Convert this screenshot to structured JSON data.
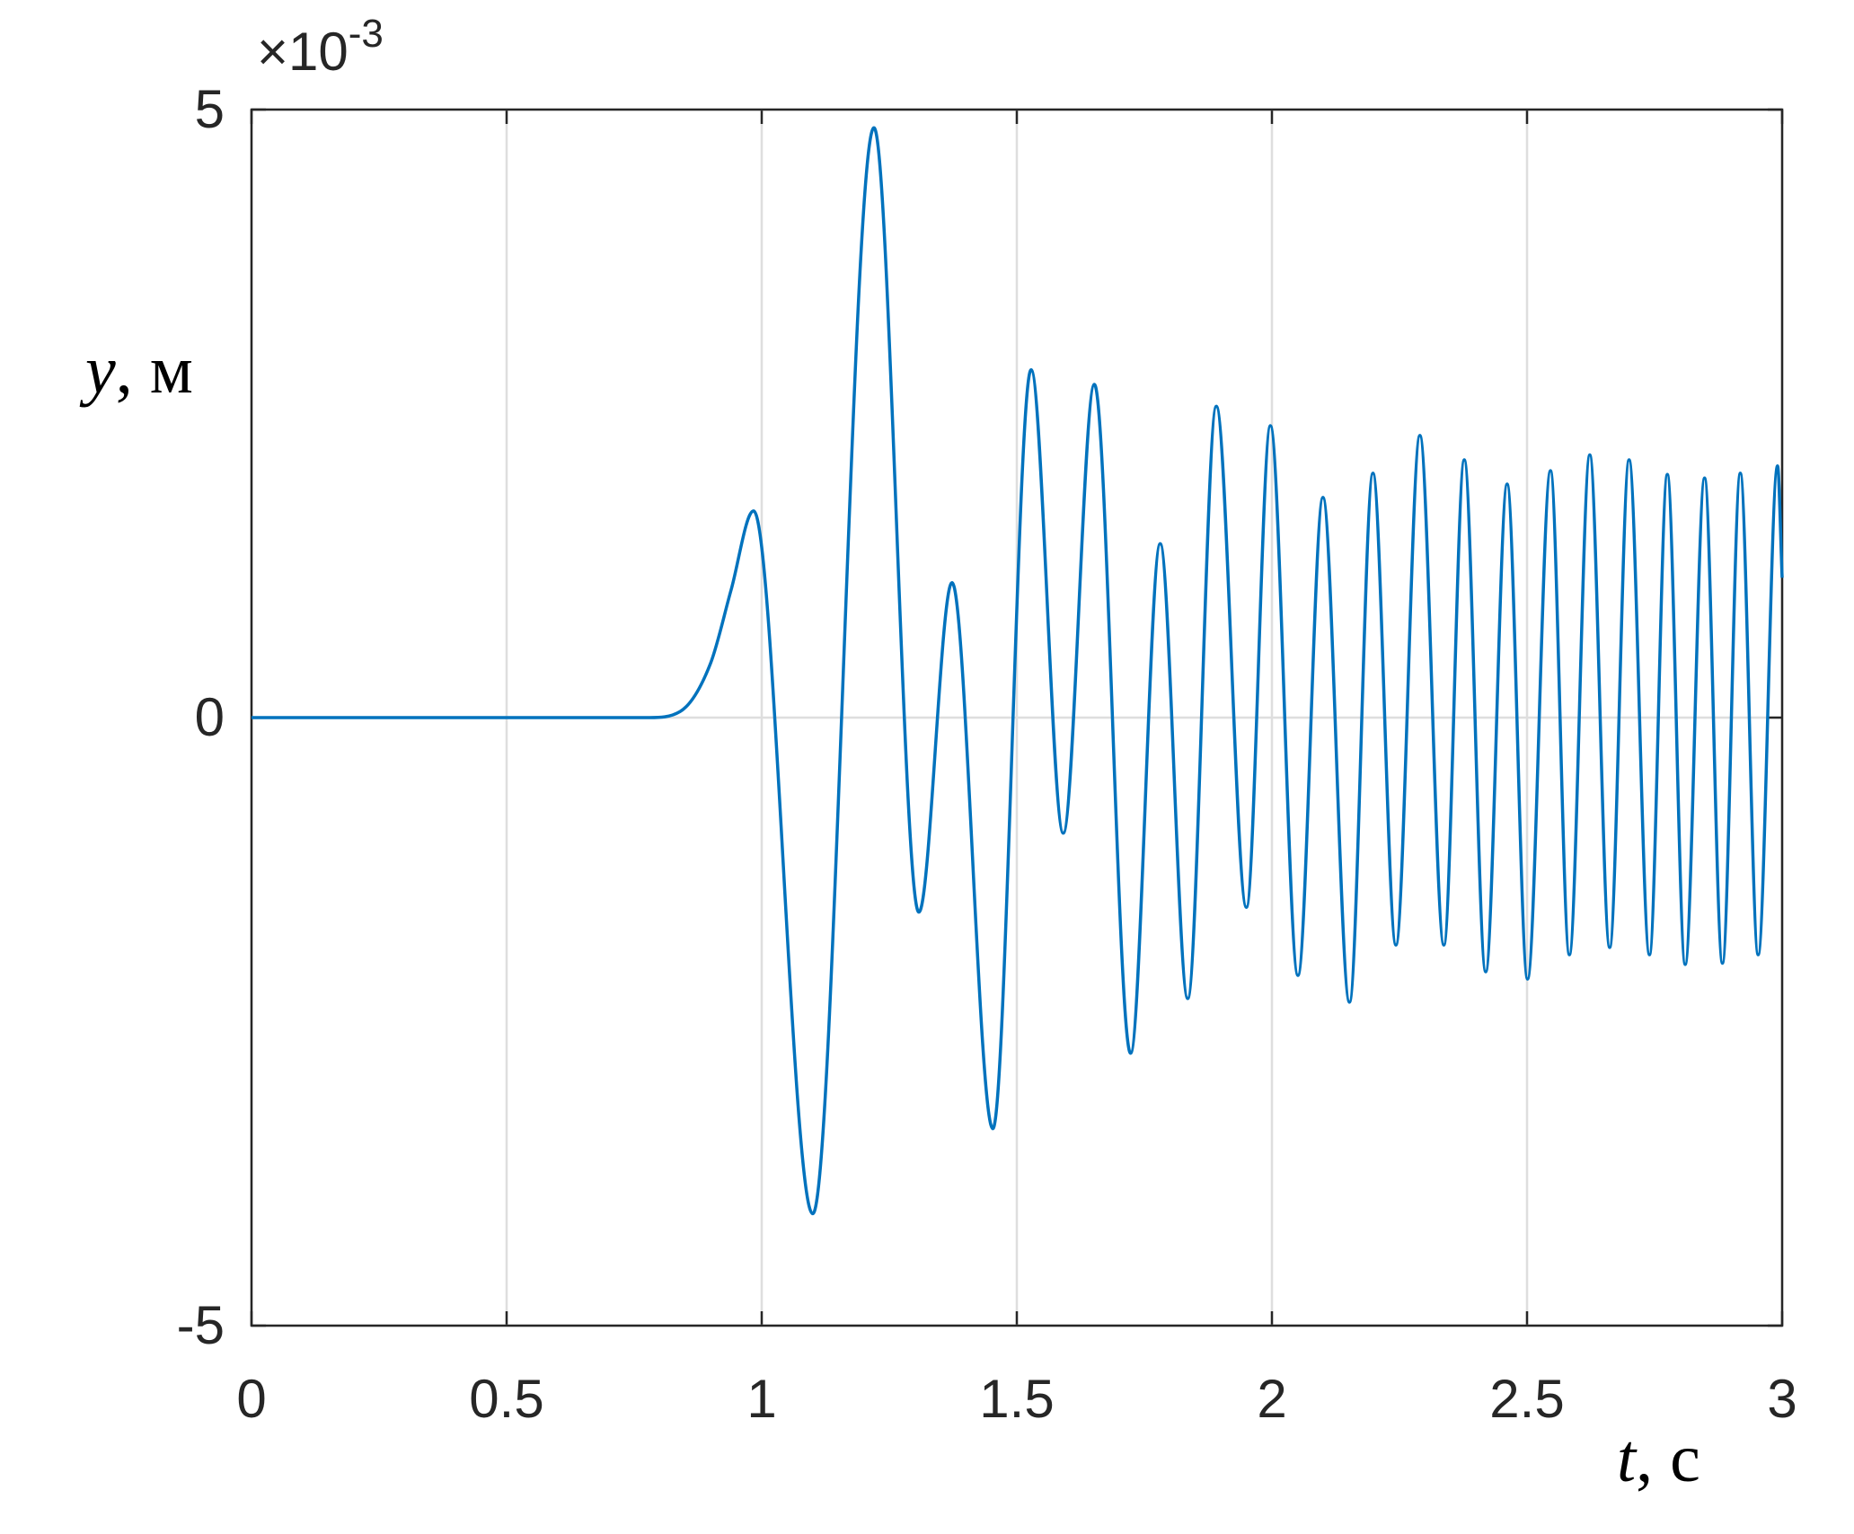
{
  "chart_data": {
    "type": "line",
    "y_multiplier": "×10",
    "y_multiplier_exponent": "-3",
    "ylabel_symbol": "y",
    "ylabel_unit": ", м",
    "xlabel_symbol": "t",
    "xlabel_unit": ", с",
    "x": [
      0,
      0.78,
      0.84,
      0.9,
      0.94,
      0.984,
      1.1,
      1.22,
      1.308,
      1.373,
      1.453,
      1.528,
      1.591,
      1.652,
      1.723,
      1.781,
      1.835,
      1.891,
      1.95,
      1.997,
      2.051,
      2.1,
      2.152,
      2.198,
      2.243,
      2.29,
      2.337,
      2.377,
      2.419,
      2.461,
      2.501,
      2.546,
      2.583,
      2.623,
      2.662,
      2.7,
      2.74,
      2.775,
      2.81,
      2.848,
      2.883,
      2.918,
      2.953,
      2.991,
      3.0
    ],
    "series": [
      {
        "color": "#0072bd",
        "values": [
          0,
          0,
          0.05,
          0.45,
          1.05,
          1.7,
          -4.08,
          4.85,
          -1.6,
          1.11,
          -3.38,
          2.86,
          -0.95,
          2.74,
          -2.76,
          1.43,
          -2.31,
          2.56,
          -1.56,
          2.4,
          -2.12,
          1.81,
          -2.34,
          2.01,
          -1.87,
          2.32,
          -1.87,
          2.12,
          -2.09,
          1.92,
          -2.15,
          2.03,
          -1.95,
          2.16,
          -1.89,
          2.12,
          -1.95,
          2.0,
          -2.03,
          1.97,
          -2.02,
          2.01,
          -1.95,
          2.07,
          1.15
        ]
      }
    ],
    "xlim": [
      0,
      3
    ],
    "xticks": [
      0,
      0.5,
      1,
      1.5,
      2,
      2.5,
      3
    ],
    "ylim": [
      -5,
      5
    ],
    "yticks": [
      -5,
      0,
      5
    ],
    "grid": true
  }
}
